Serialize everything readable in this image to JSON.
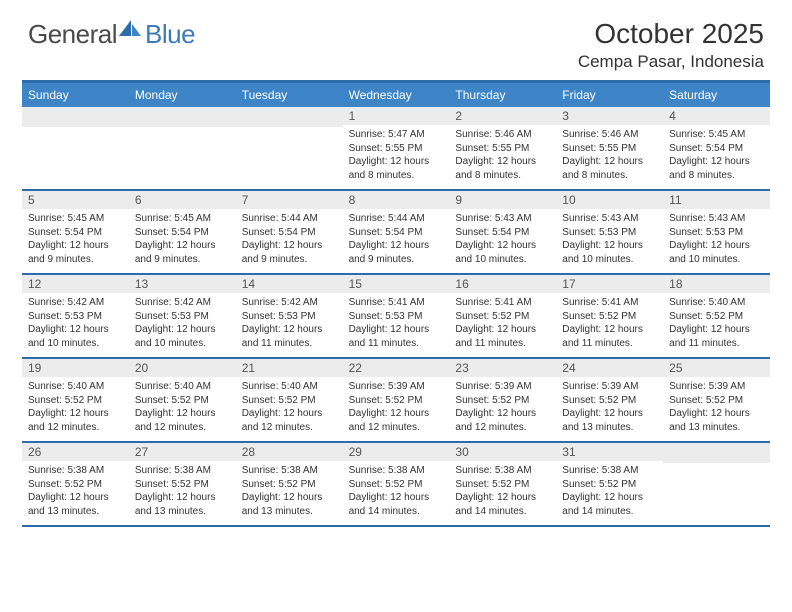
{
  "brand": {
    "text_general": "General",
    "text_blue": "Blue"
  },
  "header": {
    "month_title": "October 2025",
    "location": "Cempa Pasar, Indonesia"
  },
  "colors": {
    "header_bar": "#2a6da8",
    "day_header_bg": "#3d85c6",
    "day_header_text": "#ffffff",
    "day_number_bg": "#ececec",
    "body_text": "#333333",
    "brand_gray": "#4a4a4a",
    "brand_blue": "#3d7bb8"
  },
  "day_names": [
    "Sunday",
    "Monday",
    "Tuesday",
    "Wednesday",
    "Thursday",
    "Friday",
    "Saturday"
  ],
  "weeks": [
    [
      {
        "num": "",
        "sunrise": "",
        "sunset": "",
        "daylight": ""
      },
      {
        "num": "",
        "sunrise": "",
        "sunset": "",
        "daylight": ""
      },
      {
        "num": "",
        "sunrise": "",
        "sunset": "",
        "daylight": ""
      },
      {
        "num": "1",
        "sunrise": "Sunrise: 5:47 AM",
        "sunset": "Sunset: 5:55 PM",
        "daylight": "Daylight: 12 hours and 8 minutes."
      },
      {
        "num": "2",
        "sunrise": "Sunrise: 5:46 AM",
        "sunset": "Sunset: 5:55 PM",
        "daylight": "Daylight: 12 hours and 8 minutes."
      },
      {
        "num": "3",
        "sunrise": "Sunrise: 5:46 AM",
        "sunset": "Sunset: 5:55 PM",
        "daylight": "Daylight: 12 hours and 8 minutes."
      },
      {
        "num": "4",
        "sunrise": "Sunrise: 5:45 AM",
        "sunset": "Sunset: 5:54 PM",
        "daylight": "Daylight: 12 hours and 8 minutes."
      }
    ],
    [
      {
        "num": "5",
        "sunrise": "Sunrise: 5:45 AM",
        "sunset": "Sunset: 5:54 PM",
        "daylight": "Daylight: 12 hours and 9 minutes."
      },
      {
        "num": "6",
        "sunrise": "Sunrise: 5:45 AM",
        "sunset": "Sunset: 5:54 PM",
        "daylight": "Daylight: 12 hours and 9 minutes."
      },
      {
        "num": "7",
        "sunrise": "Sunrise: 5:44 AM",
        "sunset": "Sunset: 5:54 PM",
        "daylight": "Daylight: 12 hours and 9 minutes."
      },
      {
        "num": "8",
        "sunrise": "Sunrise: 5:44 AM",
        "sunset": "Sunset: 5:54 PM",
        "daylight": "Daylight: 12 hours and 9 minutes."
      },
      {
        "num": "9",
        "sunrise": "Sunrise: 5:43 AM",
        "sunset": "Sunset: 5:54 PM",
        "daylight": "Daylight: 12 hours and 10 minutes."
      },
      {
        "num": "10",
        "sunrise": "Sunrise: 5:43 AM",
        "sunset": "Sunset: 5:53 PM",
        "daylight": "Daylight: 12 hours and 10 minutes."
      },
      {
        "num": "11",
        "sunrise": "Sunrise: 5:43 AM",
        "sunset": "Sunset: 5:53 PM",
        "daylight": "Daylight: 12 hours and 10 minutes."
      }
    ],
    [
      {
        "num": "12",
        "sunrise": "Sunrise: 5:42 AM",
        "sunset": "Sunset: 5:53 PM",
        "daylight": "Daylight: 12 hours and 10 minutes."
      },
      {
        "num": "13",
        "sunrise": "Sunrise: 5:42 AM",
        "sunset": "Sunset: 5:53 PM",
        "daylight": "Daylight: 12 hours and 10 minutes."
      },
      {
        "num": "14",
        "sunrise": "Sunrise: 5:42 AM",
        "sunset": "Sunset: 5:53 PM",
        "daylight": "Daylight: 12 hours and 11 minutes."
      },
      {
        "num": "15",
        "sunrise": "Sunrise: 5:41 AM",
        "sunset": "Sunset: 5:53 PM",
        "daylight": "Daylight: 12 hours and 11 minutes."
      },
      {
        "num": "16",
        "sunrise": "Sunrise: 5:41 AM",
        "sunset": "Sunset: 5:52 PM",
        "daylight": "Daylight: 12 hours and 11 minutes."
      },
      {
        "num": "17",
        "sunrise": "Sunrise: 5:41 AM",
        "sunset": "Sunset: 5:52 PM",
        "daylight": "Daylight: 12 hours and 11 minutes."
      },
      {
        "num": "18",
        "sunrise": "Sunrise: 5:40 AM",
        "sunset": "Sunset: 5:52 PM",
        "daylight": "Daylight: 12 hours and 11 minutes."
      }
    ],
    [
      {
        "num": "19",
        "sunrise": "Sunrise: 5:40 AM",
        "sunset": "Sunset: 5:52 PM",
        "daylight": "Daylight: 12 hours and 12 minutes."
      },
      {
        "num": "20",
        "sunrise": "Sunrise: 5:40 AM",
        "sunset": "Sunset: 5:52 PM",
        "daylight": "Daylight: 12 hours and 12 minutes."
      },
      {
        "num": "21",
        "sunrise": "Sunrise: 5:40 AM",
        "sunset": "Sunset: 5:52 PM",
        "daylight": "Daylight: 12 hours and 12 minutes."
      },
      {
        "num": "22",
        "sunrise": "Sunrise: 5:39 AM",
        "sunset": "Sunset: 5:52 PM",
        "daylight": "Daylight: 12 hours and 12 minutes."
      },
      {
        "num": "23",
        "sunrise": "Sunrise: 5:39 AM",
        "sunset": "Sunset: 5:52 PM",
        "daylight": "Daylight: 12 hours and 12 minutes."
      },
      {
        "num": "24",
        "sunrise": "Sunrise: 5:39 AM",
        "sunset": "Sunset: 5:52 PM",
        "daylight": "Daylight: 12 hours and 13 minutes."
      },
      {
        "num": "25",
        "sunrise": "Sunrise: 5:39 AM",
        "sunset": "Sunset: 5:52 PM",
        "daylight": "Daylight: 12 hours and 13 minutes."
      }
    ],
    [
      {
        "num": "26",
        "sunrise": "Sunrise: 5:38 AM",
        "sunset": "Sunset: 5:52 PM",
        "daylight": "Daylight: 12 hours and 13 minutes."
      },
      {
        "num": "27",
        "sunrise": "Sunrise: 5:38 AM",
        "sunset": "Sunset: 5:52 PM",
        "daylight": "Daylight: 12 hours and 13 minutes."
      },
      {
        "num": "28",
        "sunrise": "Sunrise: 5:38 AM",
        "sunset": "Sunset: 5:52 PM",
        "daylight": "Daylight: 12 hours and 13 minutes."
      },
      {
        "num": "29",
        "sunrise": "Sunrise: 5:38 AM",
        "sunset": "Sunset: 5:52 PM",
        "daylight": "Daylight: 12 hours and 14 minutes."
      },
      {
        "num": "30",
        "sunrise": "Sunrise: 5:38 AM",
        "sunset": "Sunset: 5:52 PM",
        "daylight": "Daylight: 12 hours and 14 minutes."
      },
      {
        "num": "31",
        "sunrise": "Sunrise: 5:38 AM",
        "sunset": "Sunset: 5:52 PM",
        "daylight": "Daylight: 12 hours and 14 minutes."
      },
      {
        "num": "",
        "sunrise": "",
        "sunset": "",
        "daylight": ""
      }
    ]
  ]
}
